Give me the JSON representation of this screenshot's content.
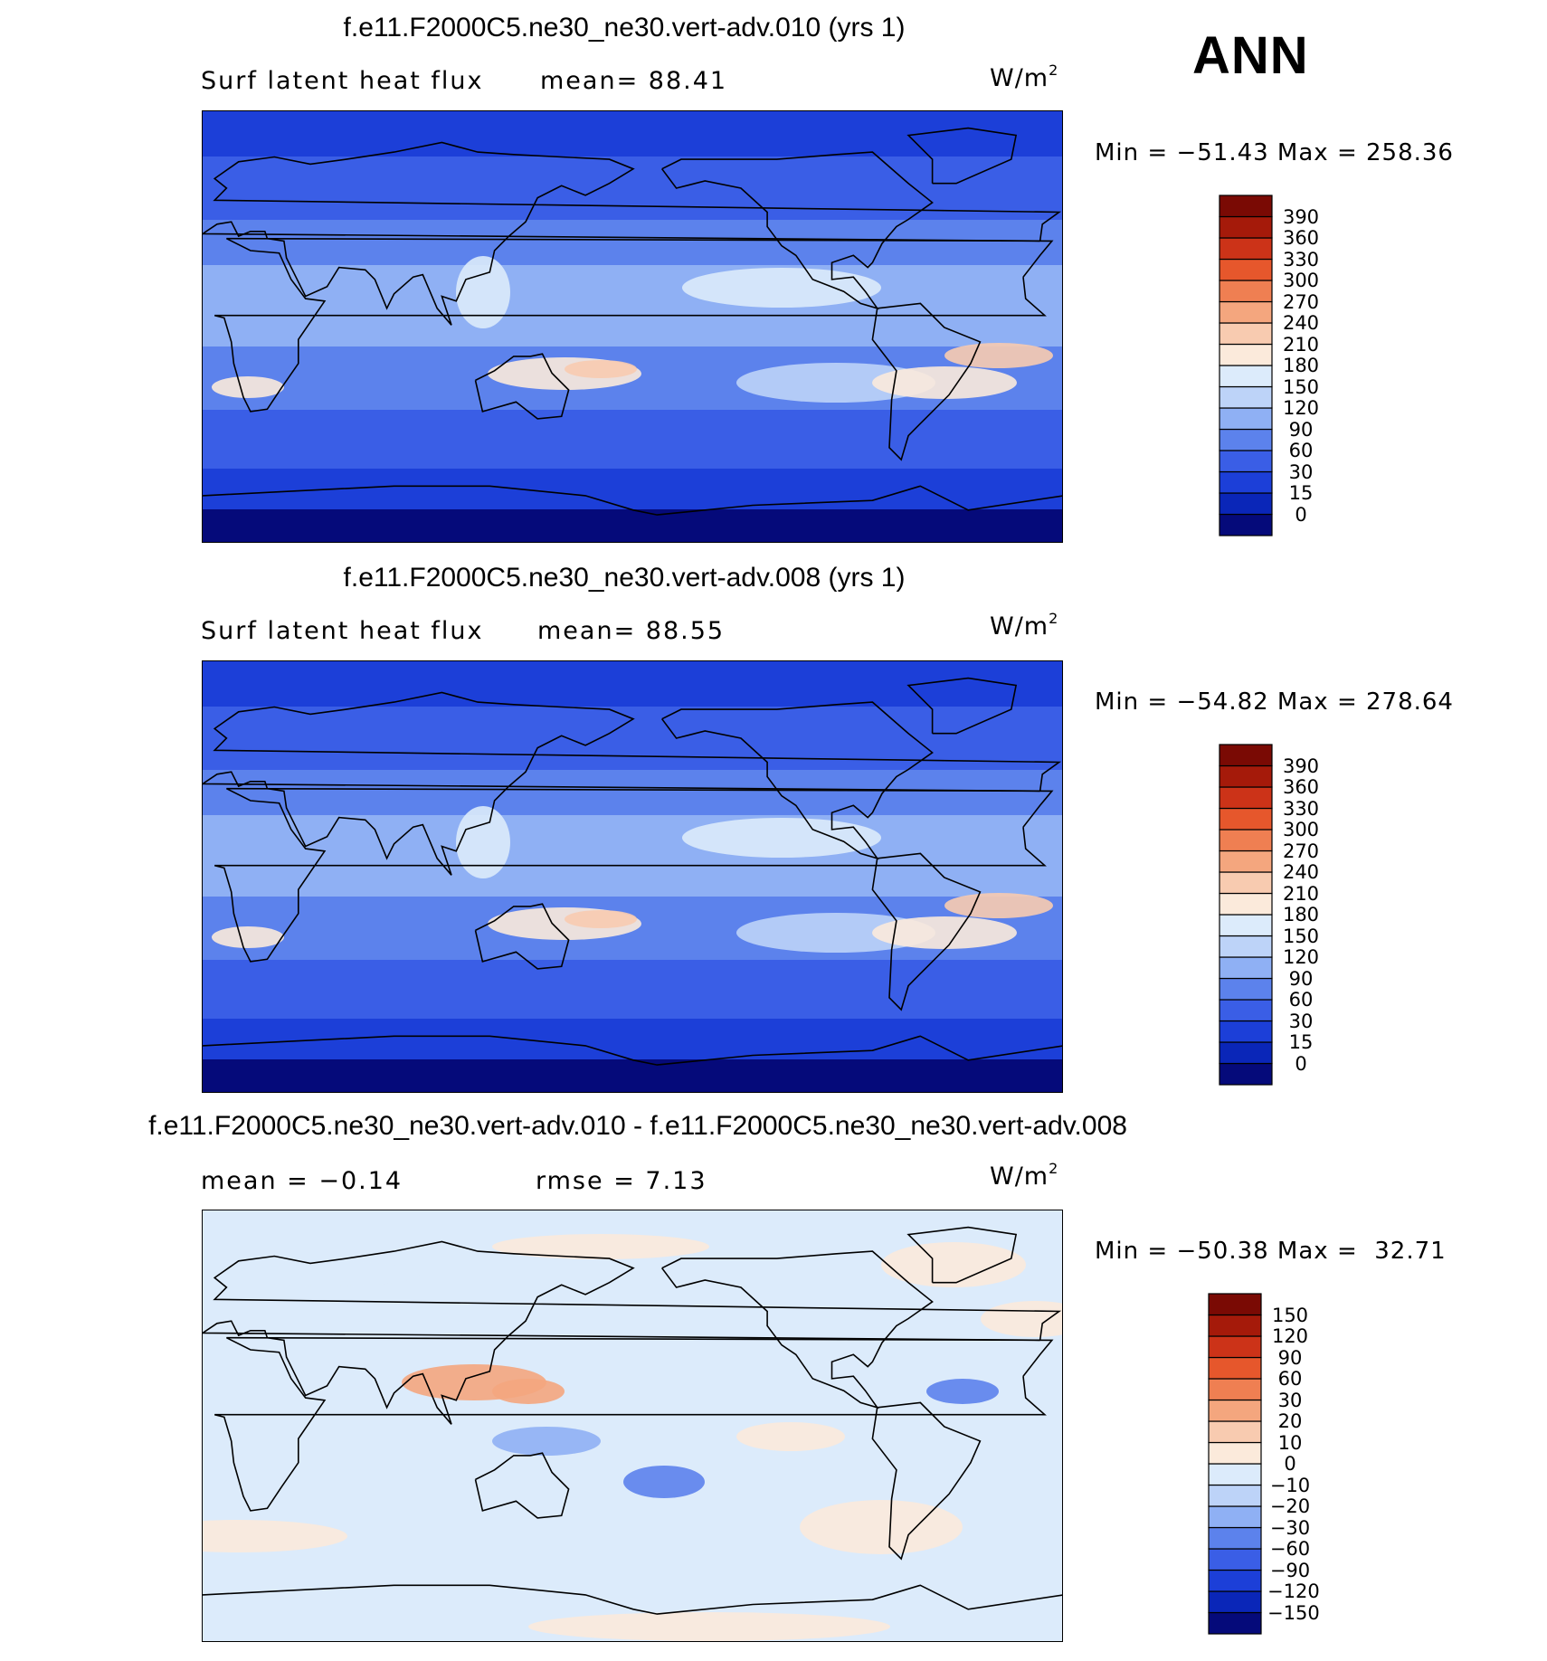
{
  "season": "ANN",
  "units_base": "W/m",
  "units_exp": "2",
  "panels": [
    {
      "title": "f.e11.F2000C5.ne30_ne30.vert-adv.010 (yrs 1)",
      "variable": "Surf latent heat flux",
      "stat1": "mean=  88.41",
      "stat2": "",
      "minmax": "Min = −51.43 Max = 258.36",
      "colormap": "blue-to-red sequential",
      "colors": [
        "#050a7a",
        "#0a26b8",
        "#1c3fd8",
        "#3a5ee6",
        "#5c82ec",
        "#8fb0f4",
        "#bdd3f8",
        "#dcebfb",
        "#fbeadb",
        "#f8cbb0",
        "#f4a67e",
        "#ef7f52",
        "#e6572c",
        "#cc3318",
        "#a51a0a",
        "#7a0a04"
      ],
      "levels": [
        "0",
        "15",
        "30",
        "60",
        "90",
        "120",
        "150",
        "180",
        "210",
        "240",
        "270",
        "300",
        "330",
        "360",
        "390"
      ]
    },
    {
      "title": "f.e11.F2000C5.ne30_ne30.vert-adv.008 (yrs 1)",
      "variable": "Surf latent heat flux",
      "stat1": "mean=  88.55",
      "stat2": "",
      "minmax": "Min = −54.82 Max = 278.64",
      "colormap": "blue-to-red sequential",
      "colors": [
        "#050a7a",
        "#0a26b8",
        "#1c3fd8",
        "#3a5ee6",
        "#5c82ec",
        "#8fb0f4",
        "#bdd3f8",
        "#dcebfb",
        "#fbeadb",
        "#f8cbb0",
        "#f4a67e",
        "#ef7f52",
        "#e6572c",
        "#cc3318",
        "#a51a0a",
        "#7a0a04"
      ],
      "levels": [
        "0",
        "15",
        "30",
        "60",
        "90",
        "120",
        "150",
        "180",
        "210",
        "240",
        "270",
        "300",
        "330",
        "360",
        "390"
      ]
    },
    {
      "title": "f.e11.F2000C5.ne30_ne30.vert-adv.010 - f.e11.F2000C5.ne30_ne30.vert-adv.008",
      "variable": "",
      "stat1": "mean =  −0.14",
      "stat2": "rmse =   7.13",
      "minmax": "Min = −50.38 Max =  32.71",
      "colormap": "blue-white-red diverging",
      "colors": [
        "#050a7a",
        "#0a26b8",
        "#1c3fd8",
        "#3a5ee6",
        "#5c82ec",
        "#8fb0f4",
        "#bdd3f8",
        "#dcebfb",
        "#fbeadb",
        "#f8cbb0",
        "#f4a67e",
        "#ef7f52",
        "#e6572c",
        "#cc3318",
        "#a51a0a",
        "#7a0a04"
      ],
      "levels": [
        "−150",
        "−120",
        "−90",
        "−60",
        "−30",
        "−20",
        "−10",
        "0",
        "10",
        "20",
        "30",
        "60",
        "90",
        "120",
        "150"
      ]
    }
  ]
}
